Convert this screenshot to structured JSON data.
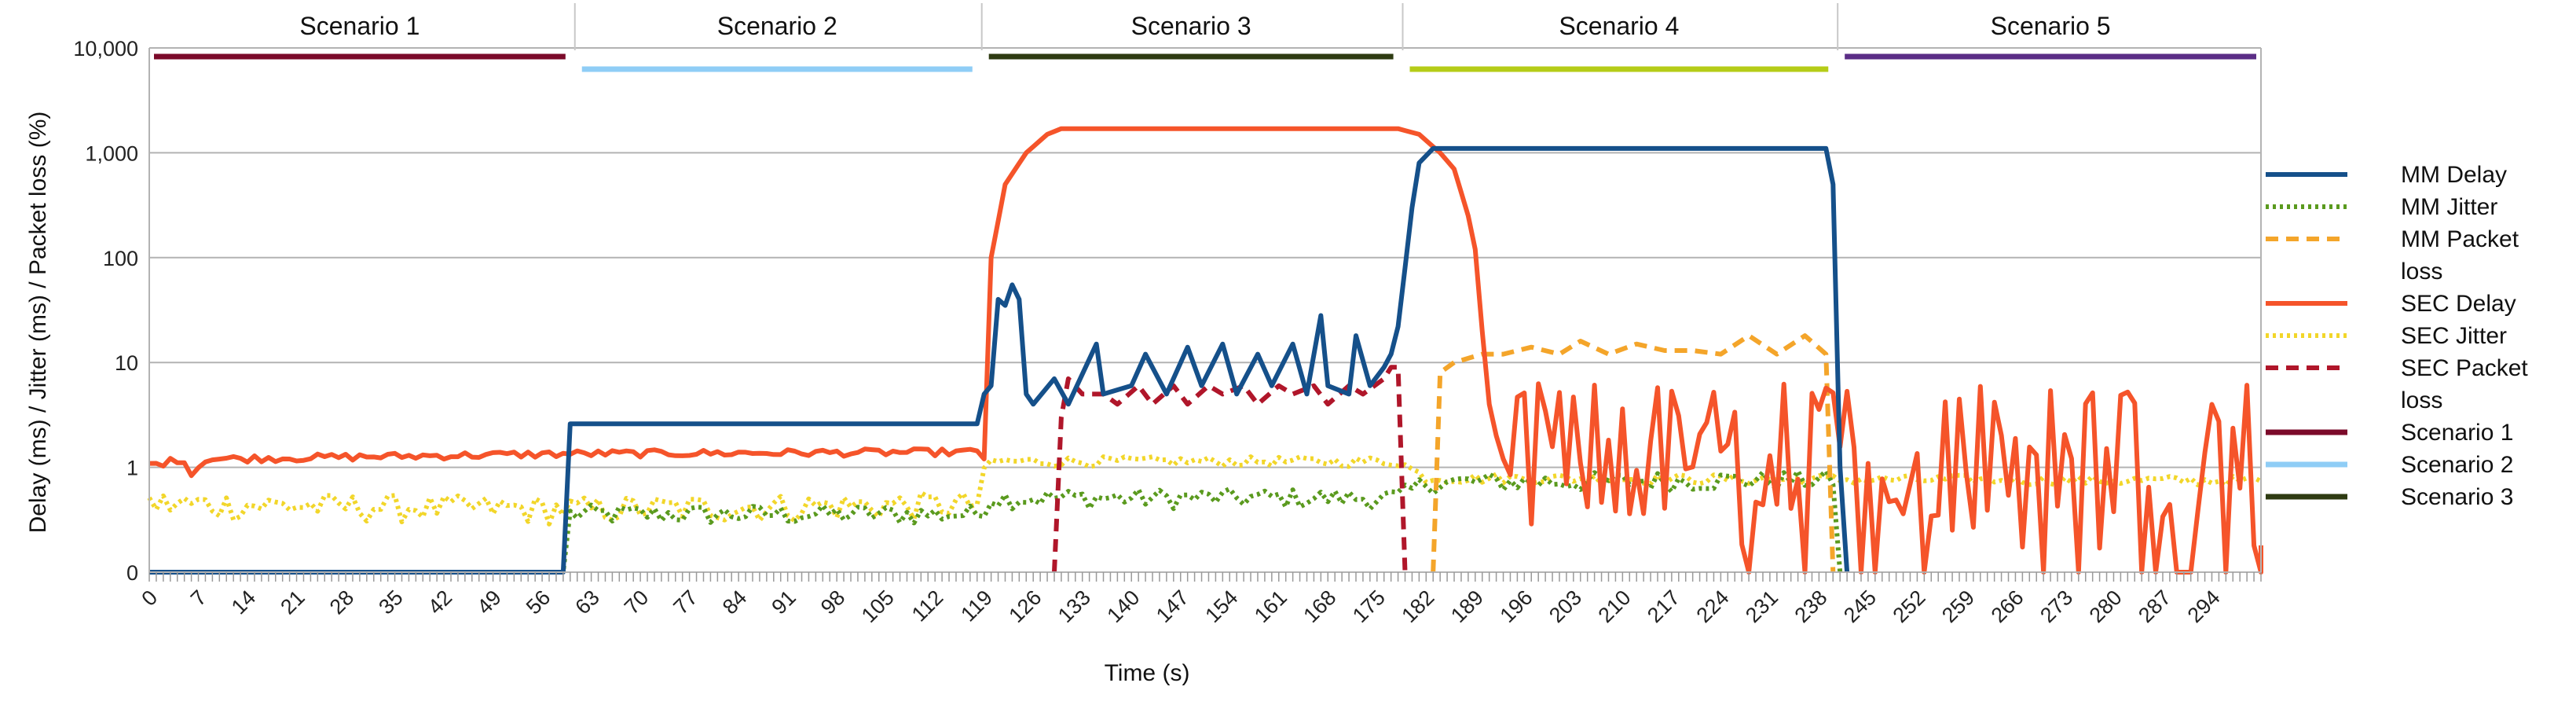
{
  "chart_data": {
    "type": "line",
    "title": "",
    "xlabel": "Time (s)",
    "ylabel": "Delay (ms) / Jitter (ms) / Packet loss (%)",
    "y_scale": "log",
    "ylim": [
      0.1,
      10000
    ],
    "xlim": [
      0,
      301
    ],
    "y_ticks": [
      {
        "label": "0",
        "value": 0.1
      },
      {
        "label": "1",
        "value": 1
      },
      {
        "label": "10",
        "value": 10
      },
      {
        "label": "100",
        "value": 100
      },
      {
        "label": "1,000",
        "value": 1000
      },
      {
        "label": "10,000",
        "value": 10000
      }
    ],
    "x_tick_labels": [
      "0",
      "7",
      "14",
      "21",
      "28",
      "35",
      "42",
      "49",
      "56",
      "63",
      "70",
      "77",
      "84",
      "91",
      "98",
      "105",
      "112",
      "119",
      "126",
      "133",
      "140",
      "147",
      "154",
      "161",
      "168",
      "175",
      "182",
      "189",
      "196",
      "203",
      "210",
      "217",
      "224",
      "231",
      "238",
      "245",
      "252",
      "259",
      "266",
      "273",
      "280",
      "287",
      "294"
    ],
    "grid": true,
    "legend_position": "right",
    "scenarios": [
      {
        "name": "Scenario 1",
        "label": "Scenario 1",
        "start": 0,
        "end": 60,
        "color": "#7b0a2a"
      },
      {
        "name": "Scenario 2",
        "label": "Scenario 2",
        "start": 61,
        "end": 118,
        "color": "#8fcdf6"
      },
      {
        "name": "Scenario 3",
        "label": "Scenario 3",
        "start": 119,
        "end": 178,
        "color": "#2e3b12"
      },
      {
        "name": "Scenario 4",
        "label": "Scenario 4",
        "start": 179,
        "end": 240,
        "color": "#b5cc18"
      },
      {
        "name": "Scenario 5",
        "label": "Scenario 5",
        "start": 241,
        "end": 301,
        "color": "#5b2d86"
      }
    ],
    "series": [
      {
        "name": "MM Delay",
        "legend_label": "MM Delay",
        "color": "#15508a",
        "dash": "",
        "width": 6,
        "key": "mm_delay",
        "segments": [
          [
            0,
            0.1
          ],
          [
            59,
            0.1
          ],
          [
            60,
            2.6
          ],
          [
            118,
            2.6
          ],
          [
            119,
            5
          ],
          [
            120,
            6
          ],
          [
            121,
            40
          ],
          [
            122,
            35
          ],
          [
            123,
            55
          ],
          [
            124,
            40
          ],
          [
            125,
            5
          ],
          [
            126,
            4
          ],
          [
            129,
            7
          ],
          [
            131,
            4
          ],
          [
            135,
            15
          ],
          [
            136,
            5
          ],
          [
            140,
            6
          ],
          [
            142,
            12
          ],
          [
            145,
            5
          ],
          [
            148,
            14
          ],
          [
            150,
            6
          ],
          [
            153,
            15
          ],
          [
            155,
            5
          ],
          [
            158,
            12
          ],
          [
            160,
            6
          ],
          [
            163,
            15
          ],
          [
            165,
            5
          ],
          [
            167,
            28
          ],
          [
            168,
            6
          ],
          [
            171,
            5
          ],
          [
            172,
            18
          ],
          [
            174,
            6
          ],
          [
            176,
            9
          ],
          [
            177,
            12
          ],
          [
            178,
            22
          ],
          [
            179,
            80
          ],
          [
            180,
            300
          ],
          [
            181,
            800
          ],
          [
            183,
            1100
          ],
          [
            239,
            1100
          ],
          [
            240,
            500
          ],
          [
            241,
            1
          ],
          [
            242,
            0.1
          ]
        ],
        "values": []
      },
      {
        "name": "MM Jitter",
        "legend_label": "MM Jitter",
        "color": "#5a9a1e",
        "dash": "4,5",
        "width": 6,
        "key": "mm_jitter",
        "values": []
      },
      {
        "name": "MM Packet loss",
        "legend_label": [
          "MM Packet",
          "loss"
        ],
        "color": "#f4a52a",
        "dash": "16,10",
        "width": 6,
        "key": "mm_loss",
        "segments": [
          [
            183,
            0.1
          ],
          [
            184,
            8
          ],
          [
            186,
            10
          ],
          [
            190,
            12
          ],
          [
            193,
            12
          ],
          [
            197,
            14
          ],
          [
            201,
            12
          ],
          [
            204,
            16
          ],
          [
            208,
            12
          ],
          [
            212,
            15
          ],
          [
            216,
            13
          ],
          [
            220,
            13
          ],
          [
            224,
            12
          ],
          [
            228,
            18
          ],
          [
            232,
            12
          ],
          [
            236,
            18
          ],
          [
            239,
            12
          ],
          [
            240,
            0.1
          ]
        ],
        "values": []
      },
      {
        "name": "SEC Delay",
        "legend_label": "SEC Delay",
        "color": "#f5542a",
        "dash": "",
        "width": 6,
        "key": "sec_delay",
        "values": []
      },
      {
        "name": "SEC Jitter",
        "legend_label": "SEC Jitter",
        "color": "#f2d62a",
        "dash": "4,5",
        "width": 6,
        "key": "sec_jitter",
        "values": []
      },
      {
        "name": "SEC Packet loss",
        "legend_label": [
          "SEC Packet",
          "loss"
        ],
        "color": "#b0162a",
        "dash": "16,10",
        "width": 6,
        "key": "sec_loss",
        "segments": [
          [
            129,
            0.1
          ],
          [
            130,
            3
          ],
          [
            131,
            7
          ],
          [
            133,
            5
          ],
          [
            136,
            5
          ],
          [
            138,
            4
          ],
          [
            141,
            6
          ],
          [
            143,
            4
          ],
          [
            146,
            6
          ],
          [
            148,
            4
          ],
          [
            151,
            6
          ],
          [
            153,
            5
          ],
          [
            156,
            6
          ],
          [
            158,
            4
          ],
          [
            161,
            6
          ],
          [
            163,
            5
          ],
          [
            166,
            6
          ],
          [
            168,
            4
          ],
          [
            171,
            6
          ],
          [
            173,
            5
          ],
          [
            176,
            7
          ],
          [
            177,
            9
          ],
          [
            178,
            9
          ],
          [
            179,
            0.1
          ]
        ],
        "values": []
      },
      {
        "name": "Scenario 1",
        "legend_label": "Scenario 1",
        "color": "#7b0a2a",
        "dash": "",
        "width": 7,
        "key": "legend_only"
      },
      {
        "name": "Scenario 2",
        "legend_label": "Scenario 2",
        "color": "#8fcdf6",
        "dash": "",
        "width": 7,
        "key": "legend_only"
      },
      {
        "name": "Scenario 3",
        "legend_label": "Scenario 3",
        "color": "#2e3b12",
        "dash": "",
        "width": 7,
        "key": "legend_only"
      }
    ],
    "profiles": {
      "sec_delay": [
        [
          0,
          1.05
        ],
        [
          5,
          1.2
        ],
        [
          6,
          0.85
        ],
        [
          8,
          1.2
        ],
        [
          60,
          1.35
        ],
        [
          118,
          1.4
        ],
        [
          119,
          1.2
        ],
        [
          120,
          100
        ],
        [
          122,
          500
        ],
        [
          125,
          1000
        ],
        [
          128,
          1500
        ],
        [
          130,
          1700
        ],
        [
          178,
          1700
        ],
        [
          181,
          1500
        ],
        [
          184,
          1000
        ],
        [
          186,
          700
        ],
        [
          188,
          250
        ],
        [
          189,
          120
        ],
        [
          190,
          20
        ],
        [
          191,
          4
        ],
        [
          192,
          2
        ],
        [
          193,
          1.2
        ]
      ],
      "sec_delay_noise_zones": [
        [
          193,
          301
        ]
      ],
      "mm_jitter": [
        [
          0,
          0.1
        ],
        [
          59,
          0.1
        ],
        [
          60,
          0.35
        ],
        [
          118,
          0.35
        ],
        [
          120,
          0.5
        ],
        [
          178,
          0.5
        ],
        [
          182,
          0.7
        ],
        [
          240,
          0.75
        ],
        [
          241,
          0.1
        ]
      ],
      "sec_jitter": [
        [
          0,
          0.45
        ],
        [
          60,
          0.4
        ],
        [
          118,
          0.45
        ],
        [
          119,
          0.9
        ],
        [
          120,
          1.15
        ],
        [
          178,
          1.15
        ],
        [
          182,
          0.8
        ],
        [
          301,
          0.75
        ]
      ]
    }
  }
}
